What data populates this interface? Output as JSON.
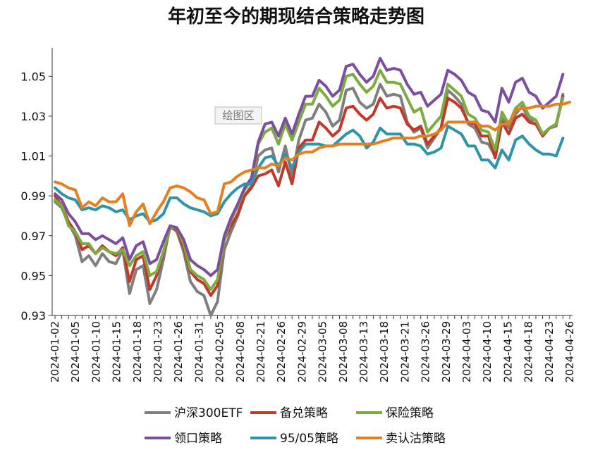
{
  "chart_data": {
    "type": "line",
    "title": "年初至今的期现结合策略走势图",
    "plot_area_label": "绘图区",
    "xlabel": "",
    "ylabel": "",
    "ylim": [
      0.93,
      1.06
    ],
    "yticks": [
      "0.93",
      "0.95",
      "0.97",
      "0.99",
      "1.01",
      "1.03",
      "1.05"
    ],
    "x_tick_labels": [
      "2024-01-02",
      "2024-01-05",
      "2024-01-10",
      "2024-01-15",
      "2024-01-18",
      "2024-01-23",
      "2024-01-26",
      "2024-01-31",
      "2024-02-05",
      "2024-02-08",
      "2024-02-21",
      "2024-02-26",
      "2024-02-29",
      "2024-03-05",
      "2024-03-08",
      "2024-03-13",
      "2024-03-18",
      "2024-03-21",
      "2024-03-26",
      "2024-03-29",
      "2024-04-03",
      "2024-04-10",
      "2024-04-15",
      "2024-04-18",
      "2024-04-23",
      "2024-04-26"
    ],
    "points_count": 77,
    "series": [
      {
        "name": "沪深300ETF",
        "color": "#7f7f7f",
        "values": [
          0.987,
          0.984,
          0.976,
          0.97,
          0.957,
          0.96,
          0.955,
          0.961,
          0.957,
          0.956,
          0.963,
          0.941,
          0.953,
          0.955,
          0.936,
          0.943,
          0.958,
          0.975,
          0.972,
          0.962,
          0.947,
          0.942,
          0.94,
          0.93,
          0.937,
          0.963,
          0.972,
          0.98,
          0.99,
          0.995,
          1.01,
          1.013,
          1.014,
          1.002,
          1.015,
          1.0,
          1.018,
          1.028,
          1.029,
          1.036,
          1.032,
          1.025,
          1.028,
          1.043,
          1.044,
          1.037,
          1.034,
          1.036,
          1.046,
          1.04,
          1.041,
          1.04,
          1.027,
          1.022,
          1.024,
          1.014,
          1.019,
          1.024,
          1.043,
          1.04,
          1.036,
          1.026,
          1.024,
          1.017,
          1.016,
          1.01,
          1.029,
          1.024,
          1.031,
          1.035,
          1.028,
          1.028,
          1.02,
          1.024,
          1.025,
          1.041,
          null
        ]
      },
      {
        "name": "备兑策略",
        "color": "#c0392b",
        "values": [
          0.99,
          0.985,
          0.977,
          0.972,
          0.963,
          0.965,
          0.961,
          0.965,
          0.962,
          0.96,
          0.964,
          0.947,
          0.958,
          0.96,
          0.943,
          0.95,
          0.961,
          0.974,
          0.973,
          0.964,
          0.952,
          0.948,
          0.946,
          0.94,
          0.945,
          0.968,
          0.975,
          0.981,
          0.99,
          0.994,
          1.0,
          1.001,
          1.003,
          0.995,
          1.007,
          0.996,
          1.014,
          1.018,
          1.018,
          1.027,
          1.024,
          1.02,
          1.023,
          1.034,
          1.035,
          1.031,
          1.028,
          1.031,
          1.039,
          1.034,
          1.035,
          1.034,
          1.026,
          1.023,
          1.025,
          1.016,
          1.02,
          1.024,
          1.039,
          1.037,
          1.034,
          1.027,
          1.026,
          1.02,
          1.02,
          1.009,
          1.027,
          1.021,
          1.029,
          1.031,
          1.027,
          1.026,
          1.02,
          1.024,
          1.026,
          1.04,
          null
        ]
      },
      {
        "name": "保险策略",
        "color": "#7cab3f",
        "values": [
          0.988,
          0.985,
          0.975,
          0.972,
          0.966,
          0.966,
          0.961,
          0.964,
          0.962,
          0.961,
          0.963,
          0.955,
          0.96,
          0.962,
          0.95,
          0.952,
          0.962,
          0.974,
          0.974,
          0.966,
          0.953,
          0.95,
          0.948,
          0.943,
          0.948,
          0.968,
          0.978,
          0.985,
          0.993,
          0.998,
          1.016,
          1.022,
          1.024,
          1.016,
          1.026,
          1.018,
          1.027,
          1.036,
          1.036,
          1.044,
          1.04,
          1.035,
          1.038,
          1.05,
          1.051,
          1.046,
          1.042,
          1.045,
          1.053,
          1.047,
          1.047,
          1.046,
          1.039,
          1.032,
          1.034,
          1.022,
          1.026,
          1.03,
          1.046,
          1.043,
          1.04,
          1.031,
          1.029,
          1.023,
          1.022,
          1.013,
          1.032,
          1.026,
          1.034,
          1.037,
          1.03,
          1.028,
          1.021,
          1.024,
          1.026,
          1.039,
          null
        ]
      },
      {
        "name": "领口策略",
        "color": "#7b4f9e",
        "values": [
          0.991,
          0.988,
          0.981,
          0.977,
          0.971,
          0.971,
          0.968,
          0.97,
          0.968,
          0.966,
          0.969,
          0.958,
          0.965,
          0.967,
          0.956,
          0.958,
          0.967,
          0.975,
          0.974,
          0.968,
          0.958,
          0.955,
          0.953,
          0.95,
          0.953,
          0.97,
          0.979,
          0.986,
          0.994,
          0.999,
          1.017,
          1.026,
          1.027,
          1.02,
          1.029,
          1.021,
          1.031,
          1.04,
          1.04,
          1.048,
          1.045,
          1.04,
          1.043,
          1.055,
          1.056,
          1.051,
          1.047,
          1.05,
          1.059,
          1.053,
          1.054,
          1.053,
          1.046,
          1.041,
          1.042,
          1.035,
          1.038,
          1.041,
          1.053,
          1.051,
          1.048,
          1.042,
          1.04,
          1.033,
          1.032,
          1.027,
          1.044,
          1.037,
          1.047,
          1.049,
          1.042,
          1.04,
          1.034,
          1.037,
          1.04,
          1.051,
          null
        ]
      },
      {
        "name": "95/05策略",
        "color": "#2e95a8",
        "values": [
          0.994,
          0.991,
          0.989,
          0.988,
          0.983,
          0.984,
          0.983,
          0.985,
          0.984,
          0.982,
          0.983,
          0.978,
          0.98,
          0.981,
          0.977,
          0.978,
          0.981,
          0.989,
          0.989,
          0.986,
          0.984,
          0.983,
          0.982,
          0.98,
          0.981,
          0.987,
          0.991,
          0.994,
          0.996,
          0.996,
          1.004,
          1.009,
          1.01,
          1.005,
          1.011,
          1.004,
          1.012,
          1.016,
          1.016,
          1.016,
          1.015,
          1.015,
          1.018,
          1.021,
          1.023,
          1.02,
          1.014,
          1.017,
          1.024,
          1.021,
          1.021,
          1.021,
          1.016,
          1.016,
          1.015,
          1.011,
          1.012,
          1.014,
          1.025,
          1.023,
          1.021,
          1.015,
          1.015,
          1.008,
          1.008,
          1.004,
          1.013,
          1.008,
          1.018,
          1.02,
          1.016,
          1.013,
          1.011,
          1.011,
          1.01,
          1.019,
          null
        ]
      },
      {
        "name": "卖认沽策略",
        "color": "#e67e22",
        "values": [
          0.997,
          0.996,
          0.994,
          0.993,
          0.984,
          0.987,
          0.985,
          0.989,
          0.987,
          0.987,
          0.991,
          0.975,
          0.982,
          0.986,
          0.976,
          0.982,
          0.987,
          0.994,
          0.995,
          0.994,
          0.992,
          0.989,
          0.988,
          0.981,
          0.982,
          0.996,
          0.997,
          1.0,
          1.002,
          1.003,
          1.004,
          1.004,
          1.006,
          1.005,
          1.009,
          1.008,
          1.011,
          1.012,
          1.012,
          1.014,
          1.015,
          1.015,
          1.016,
          1.016,
          1.016,
          1.016,
          1.016,
          1.016,
          1.017,
          1.018,
          1.019,
          1.019,
          1.019,
          1.019,
          1.02,
          1.02,
          1.021,
          1.023,
          1.027,
          1.027,
          1.027,
          1.027,
          1.027,
          1.025,
          1.025,
          1.023,
          1.026,
          1.026,
          1.033,
          1.034,
          1.034,
          1.035,
          1.035,
          1.035,
          1.036,
          1.036,
          1.037
        ]
      }
    ]
  }
}
